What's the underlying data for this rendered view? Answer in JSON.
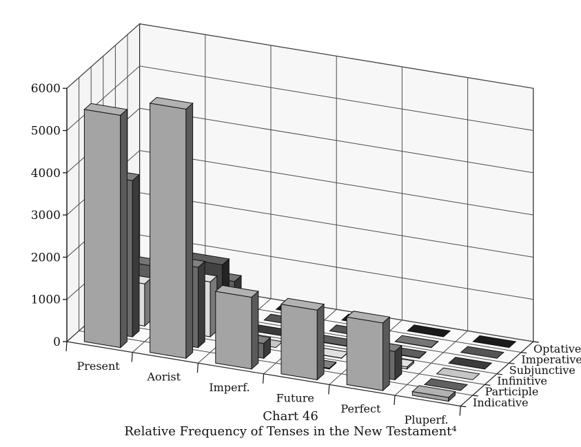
{
  "chart_data": {
    "type": "bar3d",
    "x_categories": [
      "Present",
      "Aorist",
      "Imperf.",
      "Future",
      "Perfect",
      "Pluperf."
    ],
    "depth_categories": [
      "Indicative",
      "Participle",
      "Infinitive",
      "Subjunctive",
      "Imperative",
      "Optative"
    ],
    "y_ticks": [
      "0",
      "1000",
      "2000",
      "3000",
      "4000",
      "5000",
      "6000"
    ],
    "ylim": [
      0,
      6000
    ],
    "series": [
      {
        "name": "Indicative",
        "values": [
          5500,
          5900,
          1700,
          1650,
          1600,
          90
        ]
      },
      {
        "name": "Participle",
        "values": [
          3700,
          1900,
          350,
          20,
          670,
          0
        ]
      },
      {
        "name": "Infinitive",
        "values": [
          1000,
          1300,
          0,
          5,
          50,
          0
        ]
      },
      {
        "name": "Subjunctive",
        "values": [
          200,
          1450,
          0,
          10,
          10,
          0
        ]
      },
      {
        "name": "Imperative",
        "values": [
          850,
          800,
          0,
          0,
          5,
          0
        ]
      },
      {
        "name": "Optative",
        "values": [
          20,
          50,
          0,
          0,
          0,
          0
        ]
      }
    ],
    "colors": {
      "Indicative": "#a4a4a4",
      "Participle": "#6b6b6b",
      "Infinitive": "#dcdcdc",
      "Subjunctive": "#424242",
      "Imperative": "#5e5e5e",
      "Optative": "#1e1e1e"
    },
    "grid": true
  },
  "caption": {
    "title": "Chart 46",
    "subtitle": "Relative Frequency of Tenses in the New Testament⁴"
  }
}
